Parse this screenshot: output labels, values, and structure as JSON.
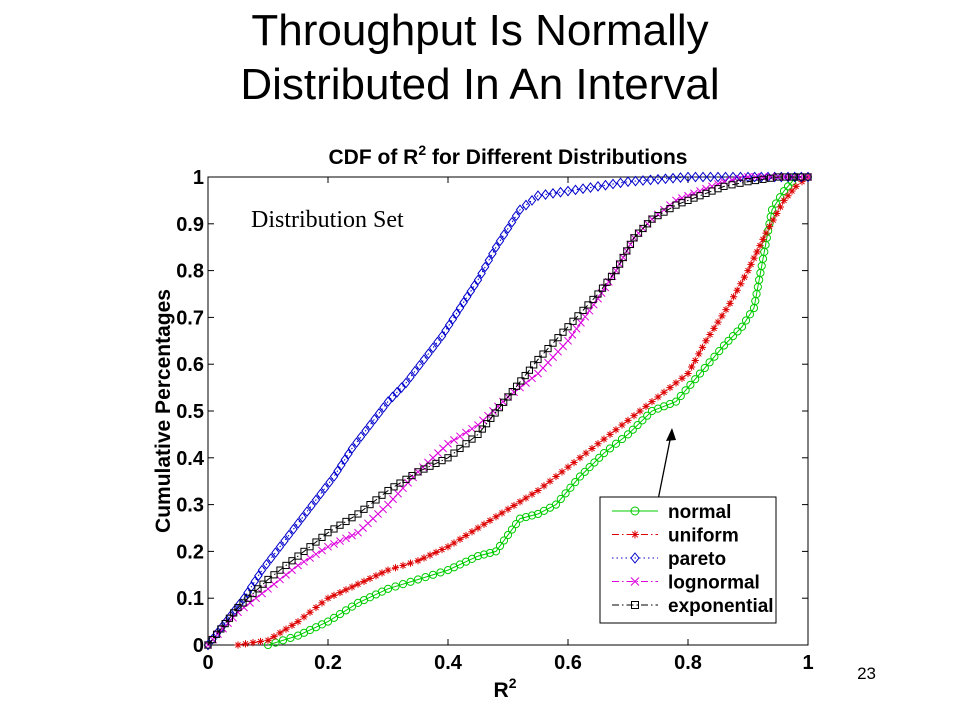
{
  "slide": {
    "title_line1": "Throughput Is Normally",
    "title_line2": "Distributed In An Interval",
    "page_number": "23"
  },
  "chart_data": {
    "type": "line",
    "title_main": "CDF of R",
    "title_sup": "2",
    "title_rest": " for Different Distributions",
    "xlabel_main": "R",
    "xlabel_sup": "2",
    "ylabel": "Cumulative Percentages",
    "xlim": [
      0,
      1
    ],
    "ylim": [
      0,
      1
    ],
    "xticks": [
      "0",
      "0.2",
      "0.4",
      "0.6",
      "0.8",
      "1"
    ],
    "yticks": [
      "0",
      "0.1",
      "0.2",
      "0.3",
      "0.4",
      "0.5",
      "0.6",
      "0.7",
      "0.8",
      "0.9",
      "1"
    ],
    "legend_position": "bottom-right",
    "annotation": "Distribution Set",
    "series": [
      {
        "name": "normal",
        "color": "#00cc00",
        "marker": "circle",
        "linestyle": "solid",
        "x": [
          0.1,
          0.15,
          0.2,
          0.25,
          0.3,
          0.35,
          0.4,
          0.45,
          0.48,
          0.52,
          0.55,
          0.58,
          0.62,
          0.66,
          0.7,
          0.74,
          0.78,
          0.82,
          0.86,
          0.89,
          0.91,
          0.94,
          0.96,
          0.98
        ],
        "y": [
          0.0,
          0.02,
          0.05,
          0.09,
          0.12,
          0.14,
          0.16,
          0.19,
          0.2,
          0.27,
          0.28,
          0.3,
          0.36,
          0.41,
          0.45,
          0.5,
          0.52,
          0.58,
          0.64,
          0.68,
          0.72,
          0.93,
          0.97,
          1.0
        ]
      },
      {
        "name": "uniform",
        "color": "#dd0000",
        "marker": "star",
        "linestyle": "dashdot",
        "x": [
          0.05,
          0.1,
          0.15,
          0.2,
          0.25,
          0.3,
          0.35,
          0.4,
          0.45,
          0.5,
          0.55,
          0.6,
          0.65,
          0.7,
          0.75,
          0.8,
          0.83,
          0.87,
          0.9,
          0.93,
          0.96,
          0.98,
          1.0
        ],
        "y": [
          0.0,
          0.01,
          0.05,
          0.1,
          0.13,
          0.16,
          0.18,
          0.21,
          0.25,
          0.29,
          0.33,
          0.38,
          0.43,
          0.48,
          0.53,
          0.58,
          0.65,
          0.73,
          0.8,
          0.88,
          0.95,
          0.98,
          1.0
        ]
      },
      {
        "name": "pareto",
        "color": "#0000cc",
        "marker": "diamond",
        "linestyle": "dotted",
        "x": [
          0.0,
          0.03,
          0.06,
          0.09,
          0.12,
          0.15,
          0.18,
          0.21,
          0.24,
          0.27,
          0.3,
          0.33,
          0.36,
          0.39,
          0.42,
          0.45,
          0.48,
          0.5,
          0.52,
          0.55,
          0.6,
          0.65,
          0.7,
          0.75,
          0.8,
          0.85,
          0.9,
          1.0
        ],
        "y": [
          0.0,
          0.05,
          0.1,
          0.16,
          0.21,
          0.26,
          0.31,
          0.36,
          0.42,
          0.47,
          0.52,
          0.56,
          0.61,
          0.66,
          0.72,
          0.78,
          0.85,
          0.89,
          0.93,
          0.96,
          0.97,
          0.98,
          0.99,
          0.995,
          1.0,
          1.0,
          1.0,
          1.0
        ]
      },
      {
        "name": "lognormal",
        "color": "#dd00dd",
        "marker": "x",
        "linestyle": "dashdot",
        "x": [
          0.0,
          0.05,
          0.1,
          0.15,
          0.2,
          0.25,
          0.3,
          0.35,
          0.4,
          0.45,
          0.5,
          0.55,
          0.6,
          0.65,
          0.68,
          0.71,
          0.74,
          0.78,
          0.82,
          0.86,
          0.9,
          0.95,
          1.0
        ],
        "y": [
          0.0,
          0.07,
          0.12,
          0.17,
          0.21,
          0.24,
          0.3,
          0.37,
          0.43,
          0.47,
          0.53,
          0.58,
          0.65,
          0.74,
          0.8,
          0.87,
          0.91,
          0.95,
          0.97,
          0.99,
          1.0,
          1.0,
          1.0
        ]
      },
      {
        "name": "exponential",
        "color": "#000000",
        "marker": "square",
        "linestyle": "dashdot",
        "x": [
          0.0,
          0.05,
          0.1,
          0.15,
          0.2,
          0.25,
          0.3,
          0.35,
          0.4,
          0.45,
          0.5,
          0.55,
          0.6,
          0.65,
          0.68,
          0.71,
          0.74,
          0.78,
          0.82,
          0.86,
          0.9,
          0.95,
          1.0
        ],
        "y": [
          0.0,
          0.08,
          0.14,
          0.19,
          0.24,
          0.28,
          0.33,
          0.37,
          0.4,
          0.45,
          0.53,
          0.61,
          0.68,
          0.75,
          0.8,
          0.87,
          0.91,
          0.94,
          0.96,
          0.98,
          0.99,
          1.0,
          1.0
        ]
      }
    ]
  }
}
